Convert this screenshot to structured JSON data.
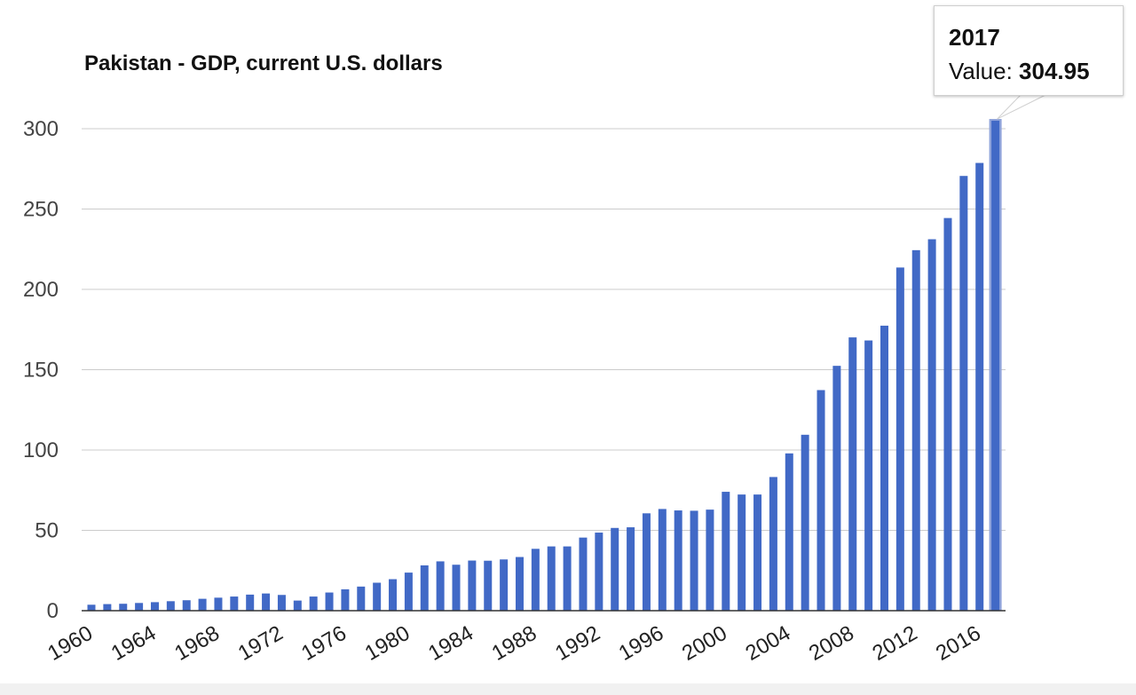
{
  "chart_data": {
    "type": "bar",
    "title": "Pakistan - GDP, current U.S. dollars",
    "xlabel": "",
    "ylabel": "",
    "ylim": [
      0,
      300
    ],
    "yticks": [
      "0",
      "50",
      "100",
      "150",
      "200",
      "250",
      "300"
    ],
    "xtick_labels": [
      "1960",
      "1964",
      "1968",
      "1972",
      "1976",
      "1980",
      "1984",
      "1988",
      "1992",
      "1996",
      "2000",
      "2004",
      "2008",
      "2012",
      "2016"
    ],
    "grid": true,
    "bar_color": "#4169C6",
    "highlight_color": "#8FA3DA",
    "categories": [
      "1960",
      "1961",
      "1962",
      "1963",
      "1964",
      "1965",
      "1966",
      "1967",
      "1968",
      "1969",
      "1970",
      "1971",
      "1972",
      "1973",
      "1974",
      "1975",
      "1976",
      "1977",
      "1978",
      "1979",
      "1980",
      "1981",
      "1982",
      "1983",
      "1984",
      "1985",
      "1986",
      "1987",
      "1988",
      "1989",
      "1990",
      "1991",
      "1992",
      "1993",
      "1994",
      "1995",
      "1996",
      "1997",
      "1998",
      "1999",
      "2000",
      "2001",
      "2002",
      "2003",
      "2004",
      "2005",
      "2006",
      "2007",
      "2008",
      "2009",
      "2010",
      "2011",
      "2012",
      "2013",
      "2014",
      "2015",
      "2016",
      "2017"
    ],
    "values": [
      3.7,
      4.1,
      4.3,
      4.8,
      5.3,
      5.9,
      6.5,
      7.4,
      8.1,
      8.8,
      10.0,
      10.7,
      9.8,
      6.3,
      8.8,
      11.3,
      13.3,
      15.0,
      17.4,
      19.6,
      23.7,
      28.2,
      30.7,
      28.6,
      31.2,
      31.1,
      31.9,
      33.4,
      38.5,
      40.0,
      40.0,
      45.5,
      48.6,
      51.5,
      51.9,
      60.6,
      63.3,
      62.4,
      62.2,
      62.9,
      74.0,
      72.3,
      72.3,
      83.2,
      97.9,
      109.5,
      137.3,
      152.4,
      170.1,
      168.2,
      177.4,
      213.6,
      224.4,
      231.2,
      244.4,
      270.6,
      278.7,
      304.95
    ],
    "tooltip": {
      "year": "2017",
      "label": "Value:",
      "value": "304.95"
    }
  }
}
